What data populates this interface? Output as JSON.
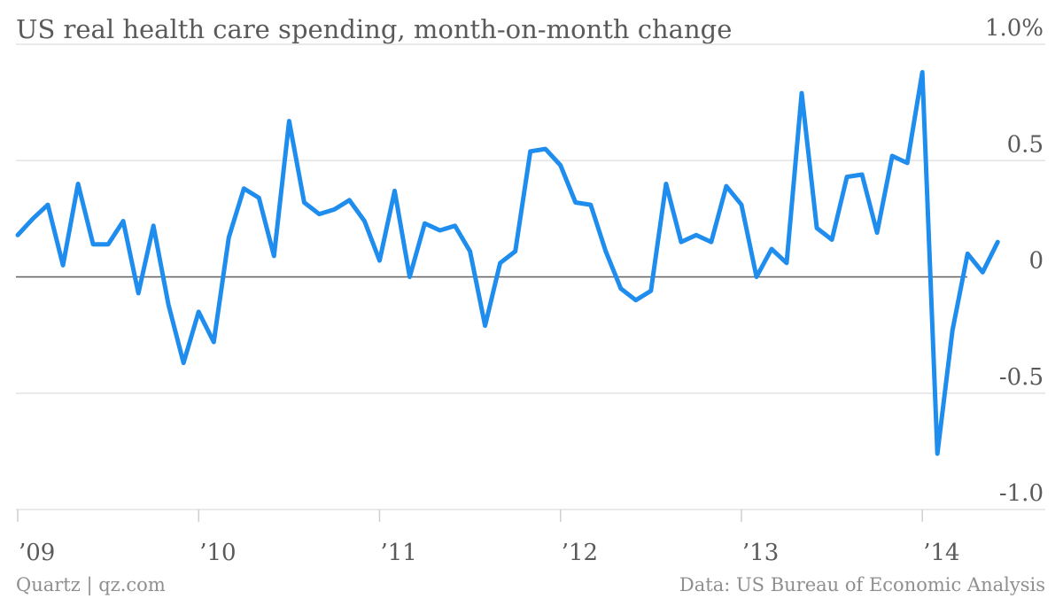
{
  "chart_data": {
    "type": "line",
    "title": "US real health care spending, month-on-month change",
    "xlabel": "",
    "ylabel": "",
    "ylim": [
      -1.0,
      1.0
    ],
    "yticks": [
      {
        "value": 1.0,
        "label": "1.0%"
      },
      {
        "value": 0.5,
        "label": "0.5"
      },
      {
        "value": 0,
        "label": "0"
      },
      {
        "value": -0.5,
        "label": "-0.5"
      },
      {
        "value": -1.0,
        "label": "-1.0"
      }
    ],
    "x_start": "2009-01",
    "xlim": [
      "2009-01",
      "2014-07"
    ],
    "xticks": [
      {
        "date": "2009-01",
        "label": "’09"
      },
      {
        "date": "2010-01",
        "label": "’10"
      },
      {
        "date": "2011-01",
        "label": "’11"
      },
      {
        "date": "2012-01",
        "label": "’12"
      },
      {
        "date": "2013-01",
        "label": "’13"
      },
      {
        "date": "2014-01",
        "label": "’14"
      }
    ],
    "grid": true,
    "series": [
      {
        "color": "#1f8ded",
        "values": [
          0.18,
          0.25,
          0.31,
          0.05,
          0.4,
          0.14,
          0.14,
          0.24,
          -0.07,
          0.22,
          -0.12,
          -0.37,
          -0.15,
          -0.28,
          0.17,
          0.38,
          0.34,
          0.09,
          0.67,
          0.32,
          0.27,
          0.29,
          0.33,
          0.24,
          0.07,
          0.37,
          0.0,
          0.23,
          0.2,
          0.22,
          0.11,
          -0.21,
          0.06,
          0.11,
          0.54,
          0.55,
          0.48,
          0.32,
          0.31,
          0.11,
          -0.05,
          -0.1,
          -0.06,
          0.4,
          0.15,
          0.18,
          0.15,
          0.39,
          0.31,
          0.0,
          0.12,
          0.06,
          0.79,
          0.21,
          0.16,
          0.43,
          0.44,
          0.19,
          0.52,
          0.49,
          0.88,
          -0.76,
          -0.23,
          0.1,
          0.02,
          0.15
        ]
      }
    ]
  },
  "footer": {
    "source_left": "Quartz | qz.com",
    "source_right": "Data: US Bureau of Economic Analysis"
  }
}
